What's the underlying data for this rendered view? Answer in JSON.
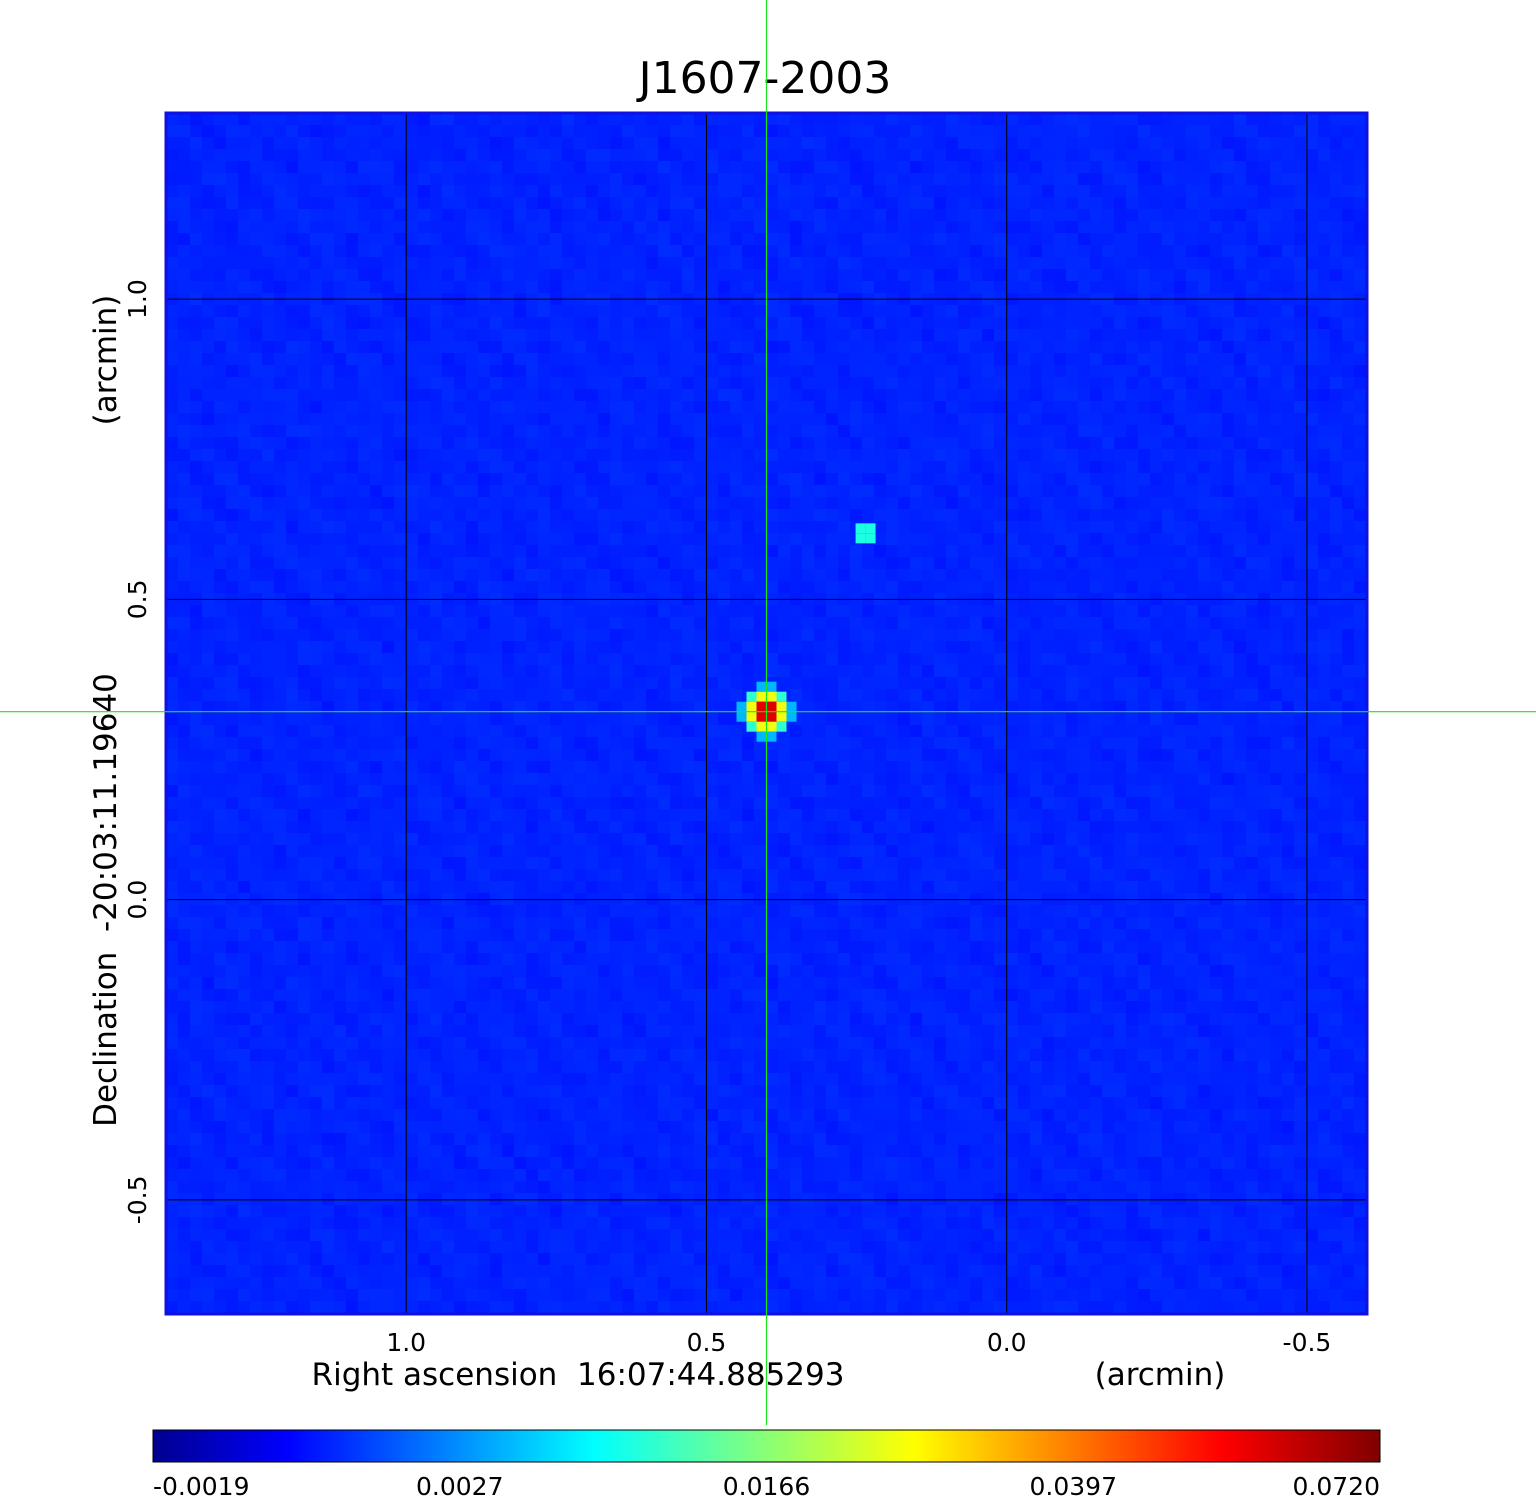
{
  "chart_data": {
    "type": "heatmap",
    "title": "J1607-2003",
    "colors": {
      "title": "#1a1ad8",
      "crosshair": "#19e619",
      "frame": "#1010e0",
      "grid": "#000000"
    },
    "colormap": "jet",
    "xlabel": "Right ascension  16:07:44.885293",
    "xunit": "(arcmin)",
    "ylabel": "Declination  -20:03:11.19640",
    "yunit": "(arcmin)",
    "xlim": [
      1.4,
      -0.6
    ],
    "ylim": [
      -0.69,
      1.31
    ],
    "x_ticks": [
      {
        "value": 1.0,
        "label": "1.0"
      },
      {
        "value": 0.5,
        "label": "0.5"
      },
      {
        "value": 0.0,
        "label": "0.0"
      },
      {
        "value": -0.5,
        "label": "-0.5"
      }
    ],
    "y_ticks": [
      {
        "value": 1.0,
        "label": "1.0"
      },
      {
        "value": 0.5,
        "label": "0.5"
      },
      {
        "value": 0.0,
        "label": "0.0"
      },
      {
        "value": -0.5,
        "label": "-0.5"
      }
    ],
    "grid": true,
    "crosshair": {
      "x": 0.4,
      "y": 0.313
    },
    "background_level": -0.0005,
    "sources": [
      {
        "x": 0.4,
        "y": 0.313,
        "peak": 0.072
      },
      {
        "x": 0.235,
        "y": 0.61,
        "peak": 0.013
      }
    ],
    "colorbar": {
      "min": -0.0019,
      "max": 0.072,
      "tick_labels": [
        "-0.0019",
        "0.0027",
        "0.0166",
        "0.0397",
        "0.0720"
      ]
    }
  }
}
